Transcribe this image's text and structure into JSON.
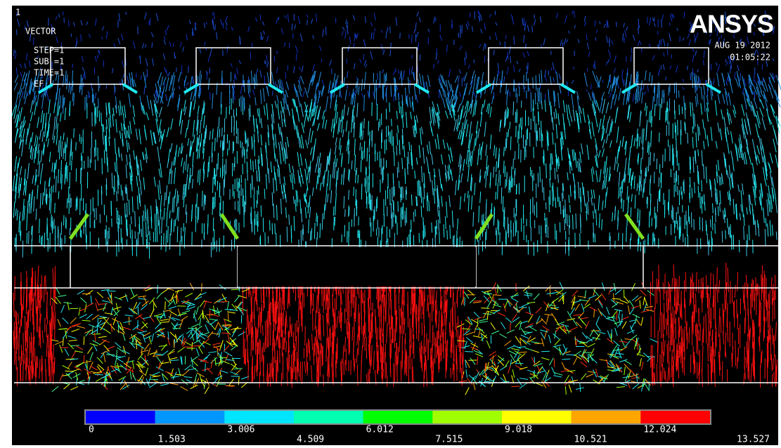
{
  "window_number": "1",
  "plot_info": {
    "title": "VECTOR",
    "lines": [
      "STEP=1",
      "SUB =1",
      "TIME=1",
      "EF"
    ]
  },
  "logo": "ANSYS",
  "date": "AUG 19 2012",
  "time": "01:05:22",
  "legend": {
    "colors": [
      "#0000ff",
      "#0096ff",
      "#00e5ff",
      "#00ffb0",
      "#00ff00",
      "#a0ff00",
      "#ffff00",
      "#ffa500",
      "#ff0000"
    ],
    "labels": [
      "0",
      "1.503",
      "3.006",
      "4.509",
      "6.012",
      "7.515",
      "9.018",
      "10.521",
      "12.024",
      "13.527"
    ]
  }
}
